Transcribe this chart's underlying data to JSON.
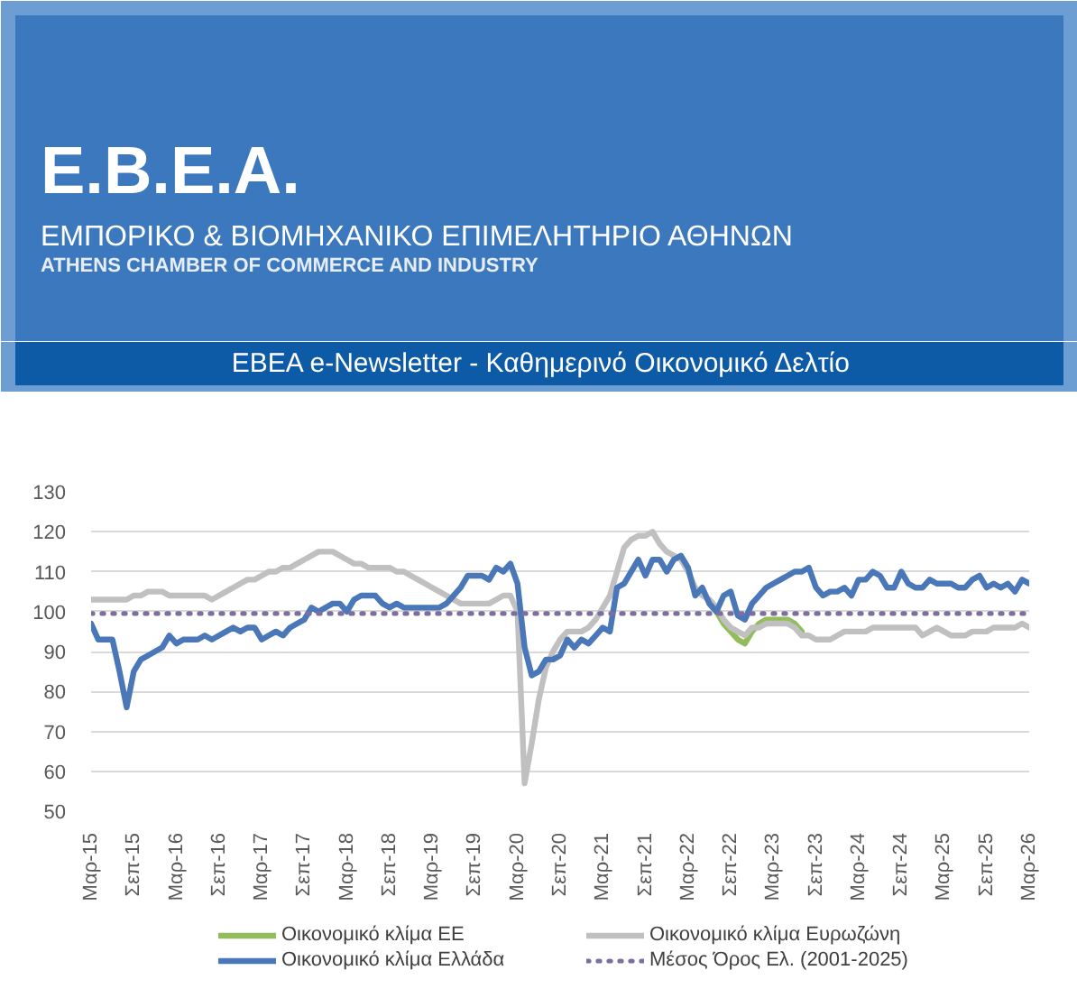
{
  "chart_data": {
    "type": "line",
    "title": "Ε.Β.Ε.Α.",
    "subtitle": "ΕΜΠΟΡΙΚΟ & ΒΙΟΜΗΧΑΝΙΚΟ ΕΠΙΜΕΛΗΤΗΡΙΟ ΑΘΗΝΩΝ",
    "annotations": [
      "ATHENS CHAMBER OF COMMERCE AND INDUSTRY",
      "ΕΒΕΑ e-Newsletter - Καθημερινό Οικονομικό Δελτίο"
    ],
    "x": [
      "2015-03",
      "2015-04",
      "2015-05",
      "2015-06",
      "2015-07",
      "2015-08",
      "2015-09",
      "2015-10",
      "2015-11",
      "2015-12",
      "2016-01",
      "2016-02",
      "2016-03",
      "2016-04",
      "2016-05",
      "2016-06",
      "2016-07",
      "2016-08",
      "2016-09",
      "2016-10",
      "2016-11",
      "2016-12",
      "2017-01",
      "2017-02",
      "2017-03",
      "2017-04",
      "2017-05",
      "2017-06",
      "2017-07",
      "2017-08",
      "2017-09",
      "2017-10",
      "2017-11",
      "2017-12",
      "2018-01",
      "2018-02",
      "2018-03",
      "2018-04",
      "2018-05",
      "2018-06",
      "2018-07",
      "2018-08",
      "2018-09",
      "2018-10",
      "2018-11",
      "2018-12",
      "2019-01",
      "2019-02",
      "2019-03",
      "2019-04",
      "2019-05",
      "2019-06",
      "2019-07",
      "2019-08",
      "2019-09",
      "2019-10",
      "2019-11",
      "2019-12",
      "2020-01",
      "2020-02",
      "2020-03",
      "2020-04",
      "2020-05",
      "2020-06",
      "2020-07",
      "2020-08",
      "2020-09",
      "2020-10",
      "2020-11",
      "2020-12",
      "2021-01",
      "2021-02",
      "2021-03",
      "2021-04",
      "2021-05",
      "2021-06",
      "2021-07",
      "2021-08",
      "2021-09",
      "2021-10",
      "2021-11",
      "2021-12",
      "2022-01",
      "2022-02",
      "2022-03",
      "2022-04",
      "2022-05",
      "2022-06",
      "2022-07",
      "2022-08",
      "2022-09",
      "2022-10",
      "2022-11",
      "2022-12",
      "2023-01",
      "2023-02",
      "2023-03",
      "2023-04",
      "2023-05",
      "2023-06",
      "2023-07",
      "2023-08",
      "2023-09",
      "2023-10",
      "2023-11",
      "2023-12",
      "2024-01",
      "2024-02",
      "2024-03",
      "2024-04",
      "2024-05",
      "2024-06",
      "2024-07",
      "2024-08",
      "2024-09",
      "2024-10",
      "2024-11",
      "2024-12",
      "2025-01",
      "2025-02",
      "2025-03",
      "2025-04",
      "2025-05",
      "2025-06",
      "2025-07",
      "2025-08",
      "2025-09",
      "2025-10",
      "2025-11",
      "2025-12",
      "2026-01",
      "2026-02",
      "2026-03"
    ],
    "series": [
      {
        "name": "Οικονομικό κλίμα ΕΕ",
        "color": "#93bc5d",
        "values": [
          null,
          null,
          null,
          null,
          null,
          null,
          null,
          null,
          null,
          null,
          null,
          null,
          null,
          null,
          null,
          null,
          null,
          null,
          null,
          null,
          null,
          null,
          null,
          null,
          null,
          null,
          null,
          null,
          null,
          null,
          null,
          null,
          null,
          null,
          null,
          null,
          null,
          null,
          null,
          null,
          null,
          null,
          null,
          null,
          null,
          null,
          null,
          null,
          null,
          null,
          null,
          null,
          null,
          null,
          null,
          null,
          null,
          null,
          null,
          null,
          null,
          null,
          null,
          null,
          null,
          null,
          null,
          null,
          null,
          null,
          null,
          null,
          null,
          null,
          null,
          null,
          null,
          null,
          null,
          null,
          null,
          null,
          null,
          null,
          null,
          null,
          null,
          102,
          100,
          97,
          95,
          93,
          92,
          95,
          97,
          98,
          98,
          98,
          98,
          97,
          95,
          null,
          null,
          null,
          null,
          null,
          null,
          null,
          null,
          null,
          null,
          null,
          null,
          null,
          null,
          null,
          null,
          null,
          null,
          null,
          null,
          null,
          null,
          null,
          null,
          null,
          null,
          null,
          null,
          null,
          null,
          null,
          null
        ]
      },
      {
        "name": "Οικονομικό κλίμα Ευρωζώνη",
        "color": "#c0c0c0",
        "values": [
          103,
          103,
          103,
          103,
          103,
          103,
          104,
          104,
          105,
          105,
          105,
          104,
          104,
          104,
          104,
          104,
          104,
          103,
          104,
          105,
          106,
          107,
          108,
          108,
          109,
          110,
          110,
          111,
          111,
          112,
          113,
          114,
          115,
          115,
          115,
          114,
          113,
          112,
          112,
          111,
          111,
          111,
          111,
          110,
          110,
          109,
          108,
          107,
          106,
          105,
          104,
          103,
          102,
          102,
          102,
          102,
          102,
          103,
          104,
          104,
          100,
          57,
          67,
          78,
          86,
          90,
          93,
          95,
          95,
          95,
          96,
          98,
          101,
          104,
          110,
          116,
          118,
          119,
          119,
          120,
          117,
          115,
          114,
          113,
          110,
          106,
          104,
          103,
          101,
          98,
          96,
          95,
          94,
          96,
          96,
          97,
          97,
          97,
          97,
          96,
          94,
          94,
          93,
          93,
          93,
          94,
          95,
          95,
          95,
          95,
          96,
          96,
          96,
          96,
          96,
          96,
          96,
          94,
          95,
          96,
          95,
          94,
          94,
          94,
          95,
          95,
          95,
          96,
          96,
          96,
          96,
          97,
          96
        ]
      },
      {
        "name": "Οικονομικό κλίμα Ελλάδα",
        "color": "#4a77b8",
        "values": [
          97,
          93,
          93,
          93,
          85,
          76,
          85,
          88,
          89,
          90,
          91,
          94,
          92,
          93,
          93,
          93,
          94,
          93,
          94,
          95,
          96,
          95,
          96,
          96,
          93,
          94,
          95,
          94,
          96,
          97,
          98,
          101,
          100,
          101,
          102,
          102,
          100,
          103,
          104,
          104,
          104,
          102,
          101,
          102,
          101,
          101,
          101,
          101,
          101,
          101,
          102,
          104,
          106,
          109,
          109,
          109,
          108,
          111,
          110,
          112,
          107,
          91,
          84,
          85,
          88,
          88,
          89,
          93,
          91,
          93,
          92,
          94,
          96,
          95,
          106,
          107,
          110,
          113,
          109,
          113,
          113,
          110,
          113,
          114,
          111,
          104,
          106,
          102,
          100,
          104,
          105,
          99,
          98,
          102,
          104,
          106,
          107,
          108,
          109,
          110,
          110,
          111,
          106,
          104,
          105,
          105,
          106,
          104,
          108,
          108,
          110,
          109,
          106,
          106,
          110,
          107,
          106,
          106,
          108,
          107,
          107,
          107,
          106,
          106,
          108,
          109,
          106,
          107,
          106,
          107,
          105,
          108,
          107
        ]
      },
      {
        "name": "Μέσος Όρος Ελ. (2001-2025)",
        "color": "#7c6fa0",
        "x": [
          "2015-03",
          "2026-03"
        ],
        "values": [
          99.5,
          99.5
        ],
        "line_style": "dotted"
      }
    ],
    "xlim": [
      "2015-03",
      "2026-03"
    ],
    "xticks": [
      {
        "value": "2015-03",
        "label": "Μαρ-15"
      },
      {
        "value": "2015-09",
        "label": "Σεπ-15"
      },
      {
        "value": "2016-03",
        "label": "Μαρ-16"
      },
      {
        "value": "2016-09",
        "label": "Σεπ-16"
      },
      {
        "value": "2017-03",
        "label": "Μαρ-17"
      },
      {
        "value": "2017-09",
        "label": "Σεπ-17"
      },
      {
        "value": "2018-03",
        "label": "Μαρ-18"
      },
      {
        "value": "2018-09",
        "label": "Σεπ-18"
      },
      {
        "value": "2019-03",
        "label": "Μαρ-19"
      },
      {
        "value": "2019-09",
        "label": "Σεπ-19"
      },
      {
        "value": "2020-03",
        "label": "Μαρ-20"
      },
      {
        "value": "2020-09",
        "label": "Σεπ-20"
      },
      {
        "value": "2021-03",
        "label": "Μαρ-21"
      },
      {
        "value": "2021-09",
        "label": "Σεπ-21"
      },
      {
        "value": "2022-03",
        "label": "Μαρ-22"
      },
      {
        "value": "2022-09",
        "label": "Σεπ-22"
      },
      {
        "value": "2023-03",
        "label": "Μαρ-23"
      },
      {
        "value": "2023-09",
        "label": "Σεπ-23"
      },
      {
        "value": "2024-03",
        "label": "Μαρ-24"
      },
      {
        "value": "2024-09",
        "label": "Σεπ-24"
      },
      {
        "value": "2025-03",
        "label": "Μαρ-25"
      },
      {
        "value": "2025-09",
        "label": "Σεπ-25"
      },
      {
        "value": "2026-03",
        "label": "Μαρ-26"
      }
    ],
    "ylim": [
      50,
      130
    ],
    "yticks": [
      50,
      60,
      70,
      80,
      90,
      100,
      110,
      120,
      130
    ],
    "grid": "y",
    "legend": "bottom",
    "line_style": "solid"
  }
}
